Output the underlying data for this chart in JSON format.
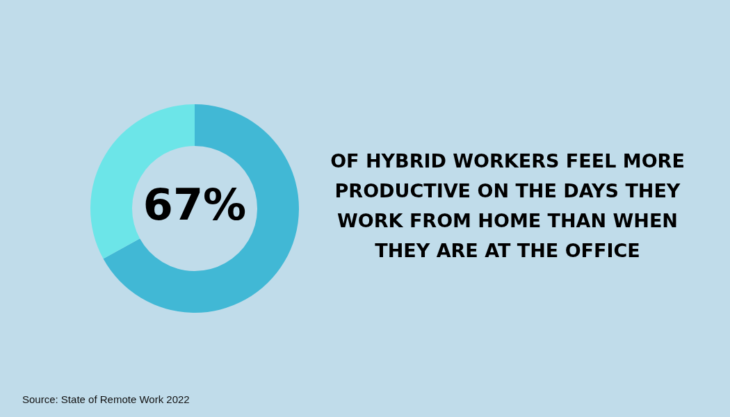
{
  "chart_data": {
    "type": "donut",
    "title": "OF HYBRID WORKERS FEEL MORE PRODUCTIVE ON THE DAYS THEY WORK FROM HOME THAN WHEN THEY ARE AT THE OFFICE",
    "categories": [
      null,
      null
    ],
    "values": [
      67,
      33
    ],
    "colors": [
      "#41b8d5",
      "#6ce5e8"
    ],
    "value_labels": [
      "67%",
      null
    ],
    "legend": false,
    "annotations": [
      "Source: State of Remote Work 2022"
    ]
  }
}
